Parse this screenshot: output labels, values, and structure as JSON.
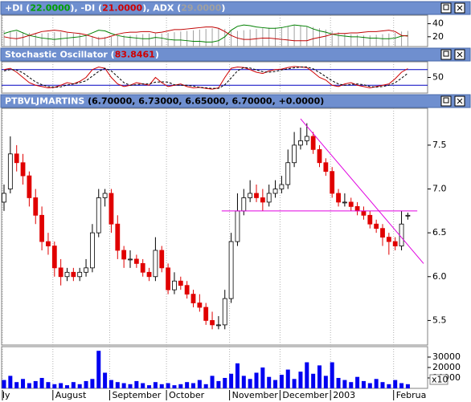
{
  "chart_data": [
    {
      "type": "dmi",
      "header": [
        {
          "text": "+DI (",
          "color": "#ffffff"
        },
        {
          "text": "22.0000",
          "color": "#00a000"
        },
        {
          "text": "), -DI (",
          "color": "#ffffff"
        },
        {
          "text": "21.0000",
          "color": "#d00000"
        },
        {
          "text": "), ADX (",
          "color": "#ffffff"
        },
        {
          "text": "29.0000",
          "color": "#a0a0a0"
        },
        {
          "text": ")",
          "color": "#ffffff"
        }
      ],
      "series": [
        {
          "color": "#008000",
          "style": "line",
          "values": [
            25,
            28,
            30,
            26,
            22,
            20,
            18,
            17,
            16,
            17,
            18,
            19,
            20,
            22,
            26,
            30,
            29,
            25,
            22,
            20,
            19,
            18,
            17,
            17,
            19,
            18,
            16,
            15,
            15,
            14,
            13,
            13,
            12,
            12,
            14,
            20,
            30,
            36,
            38,
            37,
            35,
            34,
            33,
            33,
            34,
            36,
            38,
            37,
            36,
            32,
            29,
            27,
            24,
            22,
            21,
            20,
            20,
            19,
            18,
            18,
            17,
            17,
            18,
            21,
            22
          ]
        },
        {
          "color": "#c00000",
          "style": "line",
          "values": [
            20,
            18,
            17,
            19,
            22,
            25,
            28,
            29,
            30,
            29,
            27,
            26,
            25,
            23,
            20,
            17,
            18,
            21,
            24,
            26,
            27,
            27,
            28,
            28,
            26,
            27,
            29,
            31,
            31,
            32,
            33,
            34,
            35,
            35,
            33,
            28,
            22,
            18,
            16,
            16,
            17,
            18,
            18,
            17,
            16,
            15,
            14,
            14,
            14,
            17,
            19,
            21,
            24,
            25,
            25,
            26,
            26,
            27,
            28,
            28,
            29,
            30,
            28,
            22,
            21
          ]
        },
        {
          "color": "#a0a0a0",
          "style": "bars",
          "values": [
            30,
            29,
            28,
            27,
            26,
            25,
            25,
            26,
            27,
            27,
            26,
            25,
            24,
            22,
            21,
            20,
            20,
            20,
            21,
            22,
            22,
            23,
            24,
            25,
            25,
            25,
            26,
            27,
            28,
            29,
            30,
            31,
            32,
            33,
            33,
            32,
            30,
            29,
            30,
            31,
            32,
            33,
            34,
            34,
            35,
            36,
            37,
            37,
            36,
            35,
            33,
            31,
            29,
            27,
            25,
            24,
            23,
            22,
            22,
            23,
            24,
            25,
            26,
            28,
            29
          ]
        }
      ],
      "ylim": [
        5,
        53
      ],
      "yticks": [
        20,
        40
      ]
    },
    {
      "type": "stochastic",
      "header": [
        {
          "text": "Stochastic Oscillator (",
          "color": "#ffffff"
        },
        {
          "text": "83.8461",
          "color": "#d00000"
        },
        {
          "text": ")",
          "color": "#ffffff"
        }
      ],
      "series": [
        {
          "color": "#d00000",
          "dash": false,
          "values": [
            80,
            85,
            70,
            50,
            30,
            20,
            15,
            10,
            12,
            20,
            30,
            25,
            35,
            50,
            80,
            90,
            85,
            50,
            25,
            15,
            20,
            30,
            25,
            20,
            50,
            30,
            15,
            20,
            25,
            15,
            10,
            12,
            8,
            5,
            10,
            50,
            85,
            90,
            88,
            80,
            70,
            65,
            75,
            80,
            82,
            88,
            92,
            90,
            88,
            70,
            50,
            40,
            20,
            15,
            25,
            30,
            20,
            15,
            10,
            15,
            20,
            25,
            45,
            70,
            83.8461
          ]
        },
        {
          "color": "#000000",
          "dash": true,
          "values": [
            75,
            80,
            78,
            68,
            50,
            33,
            22,
            15,
            12,
            14,
            21,
            25,
            30,
            37,
            55,
            73,
            85,
            75,
            53,
            30,
            20,
            22,
            25,
            25,
            32,
            33,
            32,
            22,
            20,
            20,
            17,
            12,
            10,
            8,
            8,
            22,
            48,
            75,
            88,
            86,
            79,
            72,
            70,
            73,
            79,
            83,
            87,
            90,
            90,
            83,
            69,
            53,
            37,
            25,
            20,
            23,
            25,
            22,
            15,
            13,
            15,
            20,
            30,
            47,
            66
          ]
        }
      ],
      "levels": [
        20,
        80
      ],
      "level_color": "#0000c0",
      "ylim": [
        -10,
        110
      ],
      "yticks": [
        50
      ]
    },
    {
      "type": "candlestick",
      "header": [
        {
          "text": "PTBVLJMARTINS",
          "color": "#ffffff"
        },
        {
          "text": " (6.70000, 6.73000, 6.65000, 6.70000, +0.0000)",
          "color": "#000000"
        }
      ],
      "open": [
        6.85,
        7.0,
        7.4,
        7.3,
        7.15,
        6.9,
        6.7,
        6.4,
        6.35,
        6.1,
        6.0,
        6.05,
        6.0,
        6.05,
        6.1,
        6.5,
        6.9,
        6.95,
        6.6,
        6.3,
        6.2,
        6.2,
        6.15,
        6.05,
        6.0,
        6.3,
        6.1,
        5.85,
        5.95,
        5.9,
        5.8,
        5.7,
        5.65,
        5.5,
        5.45,
        5.45,
        5.75,
        6.4,
        6.75,
        6.9,
        6.95,
        6.9,
        6.85,
        6.95,
        7.0,
        7.05,
        7.3,
        7.5,
        7.55,
        7.6,
        7.45,
        7.3,
        7.2,
        6.95,
        6.85,
        6.85,
        6.8,
        6.75,
        6.7,
        6.6,
        6.55,
        6.45,
        6.4,
        6.35,
        6.7
      ],
      "high": [
        7.05,
        7.6,
        7.5,
        7.4,
        7.2,
        7.0,
        6.8,
        6.5,
        6.4,
        6.2,
        6.1,
        6.1,
        6.1,
        6.2,
        6.6,
        7.0,
        7.0,
        7.0,
        6.7,
        6.35,
        6.3,
        6.25,
        6.2,
        6.1,
        6.45,
        6.35,
        6.15,
        6.05,
        6.0,
        5.95,
        5.85,
        5.8,
        5.7,
        5.6,
        5.55,
        5.85,
        6.5,
        6.95,
        7.0,
        7.1,
        7.05,
        7.0,
        7.05,
        7.1,
        7.15,
        7.45,
        7.65,
        7.7,
        7.75,
        7.65,
        7.5,
        7.35,
        7.25,
        7.0,
        6.95,
        6.9,
        6.85,
        6.8,
        6.75,
        6.65,
        6.6,
        6.5,
        6.45,
        6.75,
        6.73
      ],
      "low": [
        6.75,
        6.95,
        7.2,
        7.05,
        6.8,
        6.6,
        6.3,
        6.25,
        6.0,
        5.9,
        5.95,
        5.95,
        5.95,
        6.0,
        6.05,
        6.45,
        6.8,
        6.5,
        6.2,
        6.1,
        6.1,
        6.1,
        6.0,
        5.95,
        5.95,
        6.05,
        5.8,
        5.8,
        5.85,
        5.75,
        5.65,
        5.6,
        5.45,
        5.4,
        5.4,
        5.4,
        5.7,
        6.35,
        6.7,
        6.85,
        6.85,
        6.75,
        6.8,
        6.9,
        6.95,
        7.0,
        7.25,
        7.45,
        7.5,
        7.4,
        7.25,
        7.15,
        6.9,
        6.8,
        6.8,
        6.75,
        6.7,
        6.65,
        6.55,
        6.5,
        6.35,
        6.25,
        6.3,
        6.3,
        6.65
      ],
      "close": [
        6.95,
        7.4,
        7.3,
        7.15,
        6.9,
        6.7,
        6.4,
        6.35,
        6.1,
        6.0,
        6.05,
        6.0,
        6.05,
        6.1,
        6.5,
        6.9,
        6.95,
        6.6,
        6.3,
        6.2,
        6.2,
        6.15,
        6.05,
        6.0,
        6.3,
        6.1,
        5.85,
        5.95,
        5.9,
        5.8,
        5.7,
        5.65,
        5.5,
        5.45,
        5.45,
        5.75,
        6.4,
        6.75,
        6.9,
        6.95,
        6.9,
        6.85,
        6.95,
        7.0,
        7.05,
        7.3,
        7.5,
        7.55,
        7.6,
        7.45,
        7.3,
        7.2,
        6.95,
        6.85,
        6.85,
        6.8,
        6.75,
        6.7,
        6.6,
        6.55,
        6.45,
        6.4,
        6.35,
        6.6,
        6.7
      ],
      "up_color": "#ffffff",
      "down_color": "#e00000",
      "trendlines": [
        {
          "x": [
            34.5,
            65.5
          ],
          "y": [
            6.75,
            6.75
          ],
          "color": "#e000e0"
        },
        {
          "x": [
            47,
            66.5
          ],
          "y": [
            7.8,
            6.15
          ],
          "color": "#e000e0"
        }
      ],
      "ylim": [
        5.22,
        7.92
      ],
      "yticks": [
        5.5,
        {
          "value": 6,
          "label": "6.0"
        },
        6.5,
        {
          "value": 7,
          "label": "7.0"
        },
        7.5
      ]
    },
    {
      "type": "bar",
      "categories": [
        "ly",
        null,
        null,
        null,
        null,
        null,
        null,
        null,
        "August",
        null,
        null,
        null,
        null,
        null,
        null,
        null,
        null,
        "September",
        null,
        null,
        null,
        null,
        null,
        null,
        null,
        null,
        "October",
        null,
        null,
        null,
        null,
        null,
        null,
        null,
        null,
        null,
        "November",
        null,
        null,
        null,
        null,
        null,
        null,
        null,
        "December",
        null,
        null,
        null,
        null,
        null,
        null,
        null,
        "2003",
        null,
        null,
        null,
        null,
        null,
        null,
        null,
        null,
        null,
        "Februa",
        null,
        null
      ],
      "values": [
        8000,
        12000,
        6000,
        9000,
        5000,
        7000,
        10000,
        6000,
        4000,
        5000,
        3000,
        6000,
        4000,
        7000,
        9000,
        36000,
        15000,
        8000,
        6000,
        5000,
        4000,
        7000,
        5000,
        3000,
        6000,
        4000,
        5000,
        3000,
        4000,
        6000,
        5000,
        8000,
        4000,
        12000,
        7000,
        10000,
        14000,
        24000,
        12000,
        9000,
        15000,
        20000,
        11000,
        8000,
        13000,
        18000,
        9000,
        16000,
        25000,
        14000,
        22000,
        12000,
        25000,
        10000,
        8000,
        6000,
        11000,
        7000,
        5000,
        9000,
        6000,
        4000,
        8000,
        5000,
        4000
      ],
      "color": "#0000f0",
      "scale_label": "x10",
      "ylim": [
        0,
        40000
      ],
      "yticks": [
        10000,
        20000,
        30000
      ]
    }
  ]
}
